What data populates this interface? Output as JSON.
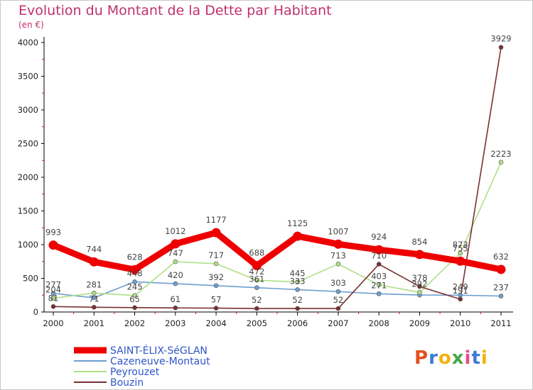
{
  "title": "Evolution du Montant de la Dette par Habitant",
  "subtitle": "(en €)",
  "logo_text": "Proxiti",
  "logo_colors": [
    "#e4501e",
    "#3a7bd5",
    "#f1b20f",
    "#44a846",
    "#e84c8a",
    "#3a7bd5",
    "#f1b20f"
  ],
  "chart_data": {
    "type": "line",
    "title": "Evolution du Montant de la Dette par Habitant",
    "ylabel": "(en €)",
    "x": [
      "2000",
      "2001",
      "2002",
      "2003",
      "2004",
      "2005",
      "2006",
      "2007",
      "2008",
      "2009",
      "2010",
      "2011"
    ],
    "ylim": [
      0,
      4000
    ],
    "yticks": [
      0,
      500,
      1000,
      1500,
      2000,
      2500,
      3000,
      3500,
      4000
    ],
    "grid": false,
    "legend_position": "bottom-left",
    "series": [
      {
        "name": "SAINT-ÉLIX-SéGLAN",
        "color": "#ee0000",
        "values": [
          993,
          744,
          628,
          1012,
          1177,
          688,
          1125,
          1007,
          924,
          854,
          755,
          632
        ],
        "labels": [
          "993",
          "744",
          "628",
          "1012",
          "1177",
          "688",
          "1125",
          "1007",
          "924",
          "854",
          "",
          "632"
        ]
      },
      {
        "name": "Cazeneuve-Montaut",
        "color": "#6e9fd0",
        "values": [
          277,
          211,
          448,
          420,
          392,
          361,
          333,
          303,
          271,
          252,
          249,
          237
        ],
        "labels": [
          "277",
          "",
          "448",
          "420",
          "392",
          "361",
          "333",
          "303",
          "",
          "",
          "249",
          "237"
        ]
      },
      {
        "name": "Peyrouzet",
        "color": "#aee086",
        "values": [
          204,
          281,
          245,
          747,
          717,
          472,
          445,
          713,
          403,
          292,
          873,
          2223
        ],
        "labels": [
          "204",
          "281",
          "245",
          "747",
          "717",
          "472",
          "445",
          "713",
          "403",
          "292",
          "873",
          "2223"
        ]
      },
      {
        "name": "Bouzin",
        "color": "#7a3030",
        "values": [
          81,
          71,
          65,
          61,
          57,
          52,
          52,
          52,
          710,
          378,
          191,
          3929
        ],
        "labels": [
          "81",
          "71",
          "65",
          "61",
          "57",
          "52",
          "52",
          "52",
          "710",
          "378",
          "191",
          "3929"
        ]
      }
    ],
    "extra_labels": [
      {
        "series": 0,
        "index": 10,
        "text": "755"
      },
      {
        "series": 1,
        "index": 8,
        "text": "271"
      }
    ]
  }
}
